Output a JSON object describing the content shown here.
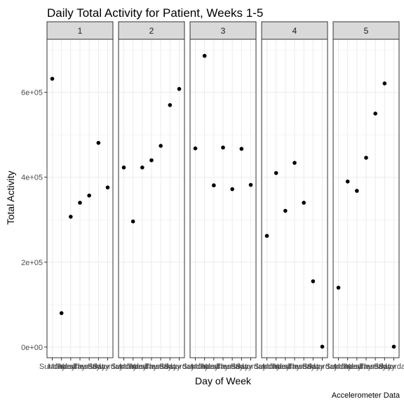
{
  "chart_data": {
    "type": "scatter",
    "title": "Daily Total Activity for Patient, Weeks 1-5",
    "xlabel": "Day of Week",
    "ylabel": "Total Activity",
    "caption": "Accelerometer Data",
    "ylim": [
      -25000,
      725000
    ],
    "yticks": [
      0,
      200000,
      400000,
      600000
    ],
    "ytick_labels": [
      "0e+00",
      "2e+05",
      "4e+05",
      "6e+05"
    ],
    "categories": [
      "Sunday",
      "Monday",
      "Tuesday",
      "Wednesday",
      "Thursday",
      "Friday",
      "Saturday"
    ],
    "grid": true,
    "facets": [
      {
        "label": "1",
        "values": [
          632000,
          80000,
          307000,
          340000,
          357000,
          481000,
          376000
        ]
      },
      {
        "label": "2",
        "values": [
          423000,
          296000,
          423000,
          440000,
          474000,
          570000,
          608000
        ]
      },
      {
        "label": "3",
        "values": [
          468000,
          686000,
          381000,
          470000,
          372000,
          467000,
          382000
        ]
      },
      {
        "label": "4",
        "values": [
          262000,
          410000,
          321000,
          434000,
          340000,
          155000,
          1000
        ]
      },
      {
        "label": "5",
        "values": [
          140000,
          390000,
          368000,
          446000,
          550000,
          621000,
          1000
        ]
      }
    ]
  }
}
